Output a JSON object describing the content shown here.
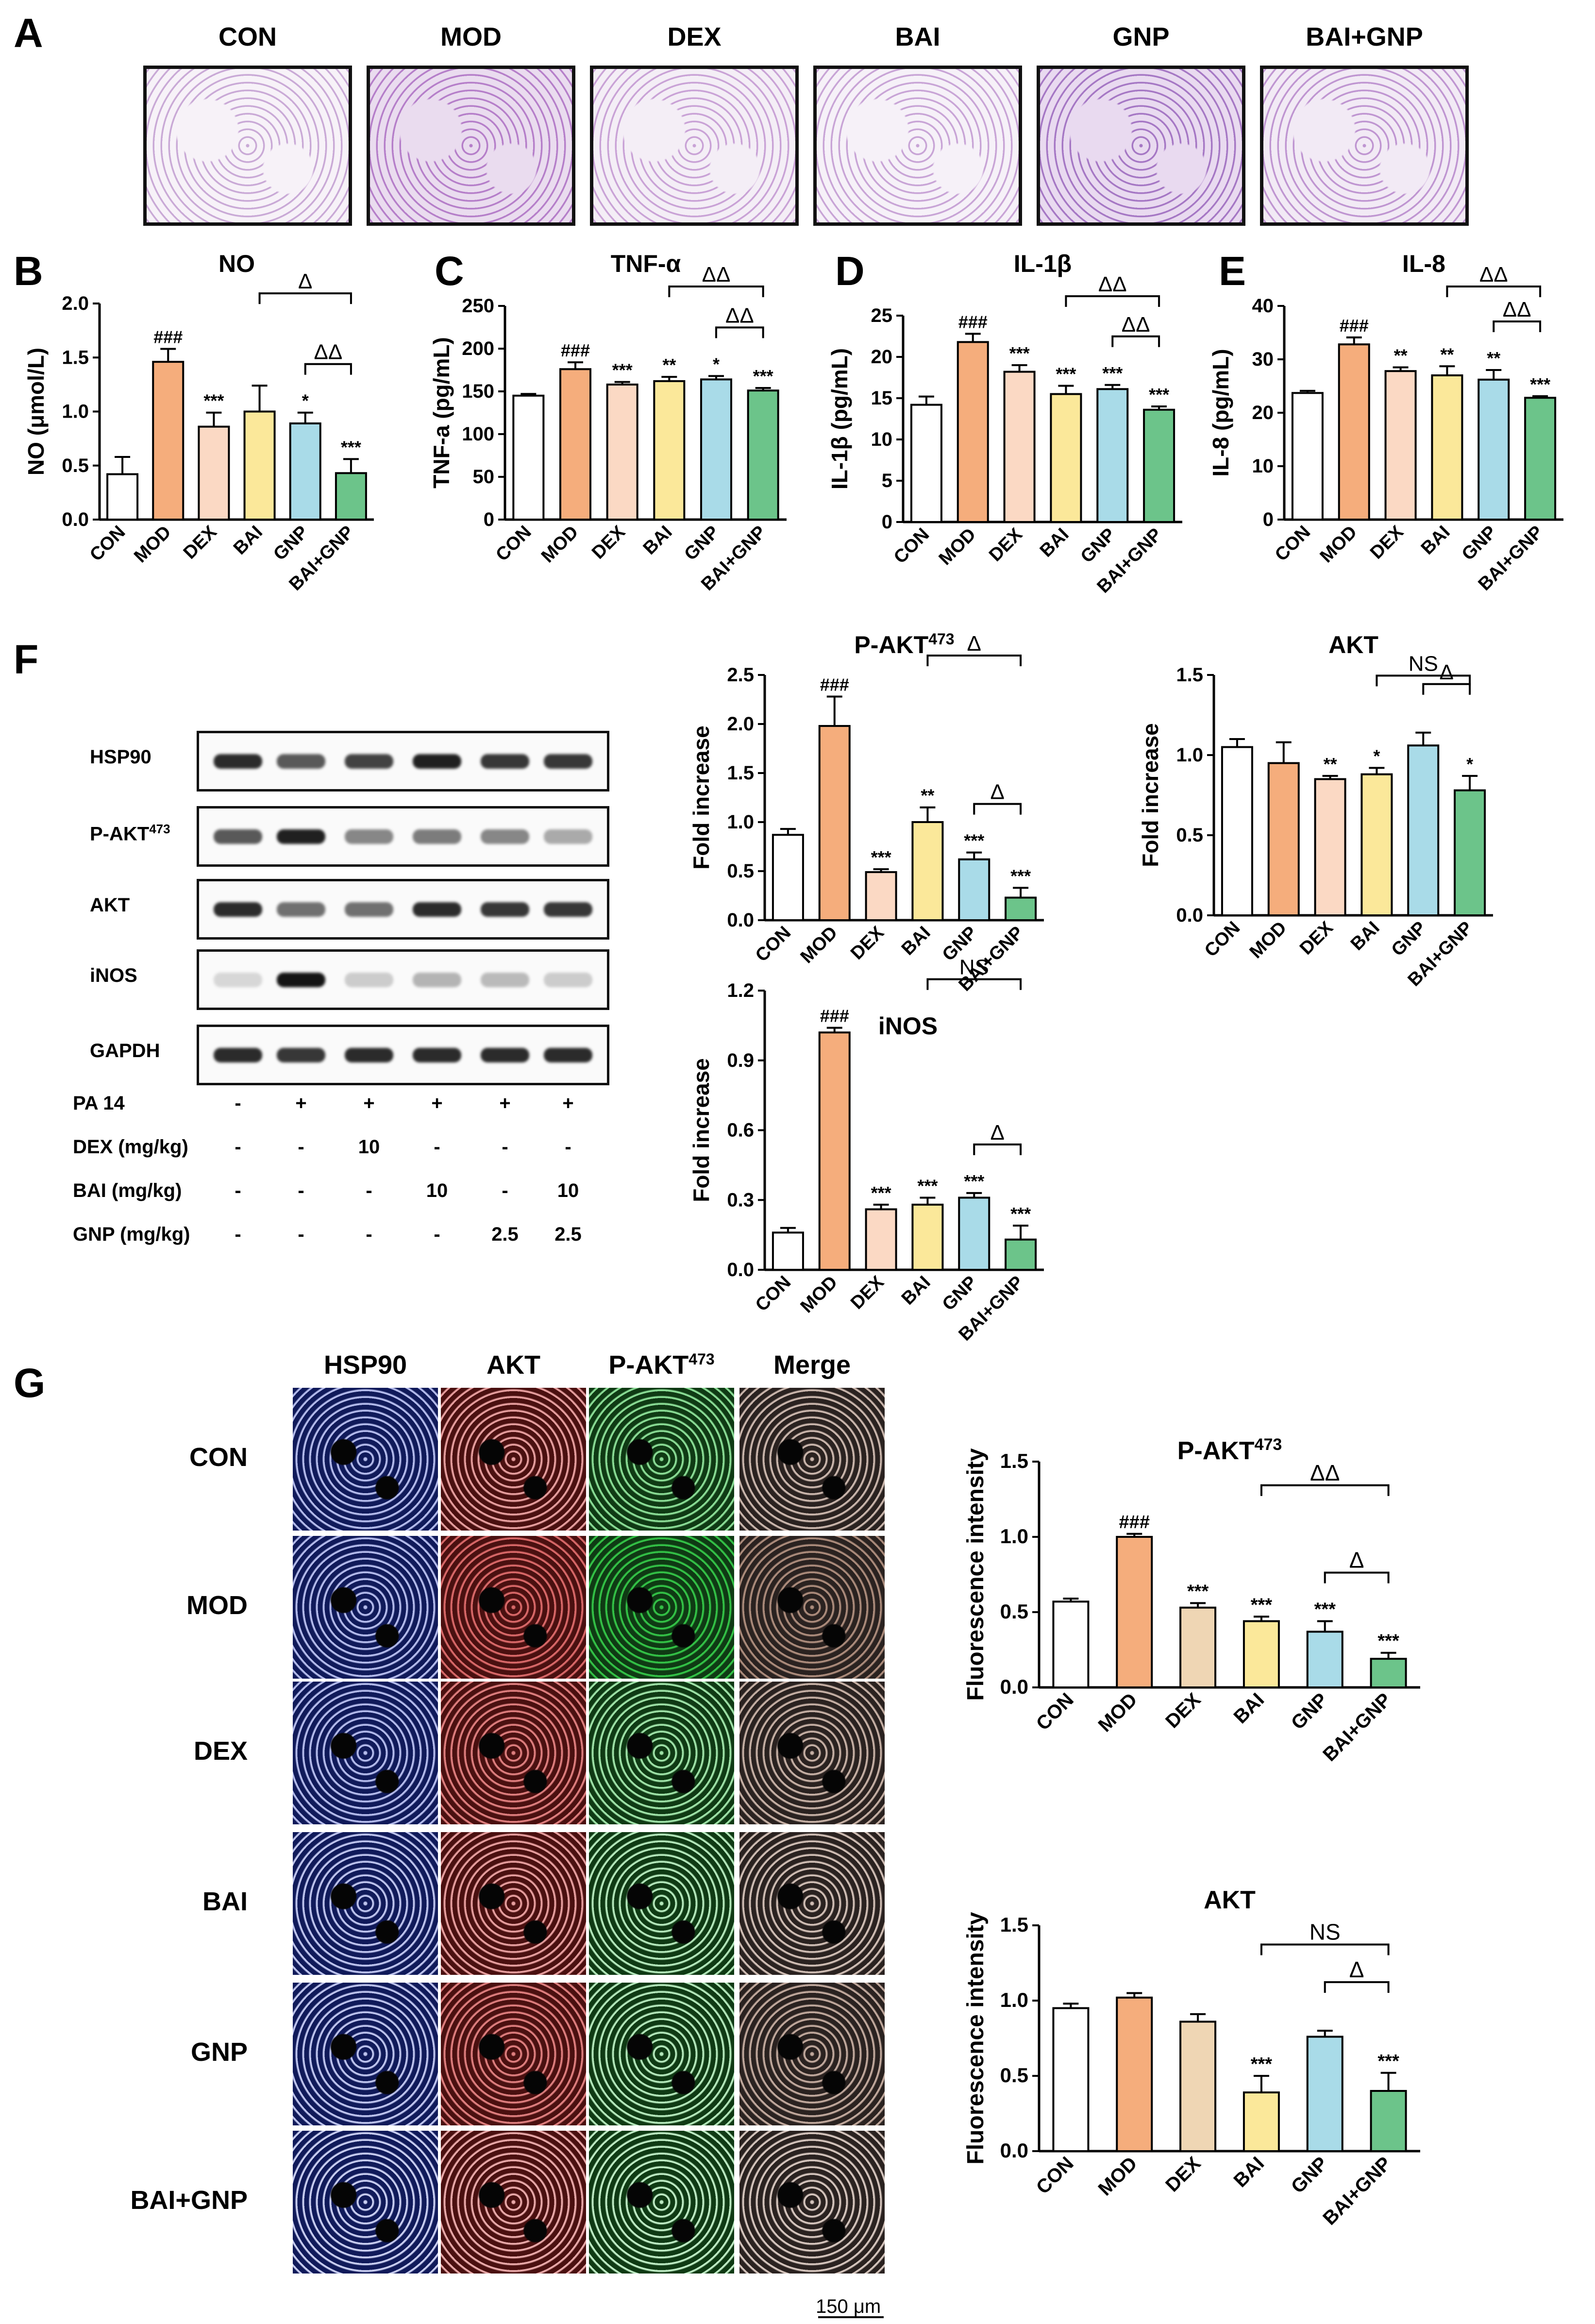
{
  "panel_labels": [
    "A",
    "B",
    "C",
    "D",
    "E",
    "F",
    "G"
  ],
  "panel_a": {
    "groups": [
      "CON",
      "MOD",
      "DEX",
      "BAI",
      "GNP",
      "BAI+GNP"
    ]
  },
  "panel_f": {
    "blot_labels": [
      "HSP90",
      "P-AKT",
      "AKT",
      "iNOS",
      "GAPDH"
    ],
    "blot_superscripts": [
      "",
      "473",
      "",
      "",
      ""
    ],
    "treatments": [
      {
        "label": "PA 14",
        "values": [
          "-",
          "+",
          "+",
          "+",
          "+",
          "+"
        ]
      },
      {
        "label": "DEX (mg/kg)",
        "values": [
          "-",
          "-",
          "10",
          "-",
          "-",
          "-"
        ]
      },
      {
        "label": "BAI (mg/kg)",
        "values": [
          "-",
          "-",
          "-",
          "10",
          "-",
          "10"
        ]
      },
      {
        "label": "GNP (mg/kg)",
        "values": [
          "-",
          "-",
          "-",
          "-",
          "2.5",
          "2.5"
        ]
      }
    ]
  },
  "panel_g": {
    "columns": [
      "HSP90",
      "AKT",
      "P-AKT",
      "Merge"
    ],
    "column_superscripts": [
      "",
      "",
      "473",
      ""
    ],
    "rows": [
      "CON",
      "MOD",
      "DEX",
      "BAI",
      "GNP",
      "BAI+GNP"
    ],
    "scale_bar": "150 μm"
  },
  "colors": {
    "CON": "#ffffff",
    "MOD": "#f5ad7c",
    "DEX": "#fbd9c4",
    "BAI": "#fbe89a",
    "GNP": "#a9dbe8",
    "BAI+GNP": "#6cc48a",
    "DEX_G": "#efd6b4",
    "HSP90_channel": "#101a5a",
    "AKT_channel": "#4a1010",
    "PAKT_channel": "#0f3a14"
  },
  "chart_data": [
    {
      "id": "B",
      "type": "bar",
      "title": "NO",
      "ylabel": "NO (μmol/L)",
      "ylim": [
        0,
        2.0
      ],
      "yticks": [
        "0.0",
        "0.5",
        "1.0",
        "1.5",
        "2.0"
      ],
      "categories": [
        "CON",
        "MOD",
        "DEX",
        "BAI",
        "GNP",
        "BAI+GNP"
      ],
      "values": [
        0.42,
        1.46,
        0.86,
        1.0,
        0.89,
        0.43
      ],
      "errors": [
        0.16,
        0.12,
        0.13,
        0.24,
        0.1,
        0.13
      ],
      "annotations": [
        "",
        "###",
        "***",
        "",
        "*",
        "***"
      ],
      "brackets": [
        {
          "from": "BAI",
          "to": "BAI+GNP",
          "label": "Δ"
        },
        {
          "from": "GNP",
          "to": "BAI+GNP",
          "label": "ΔΔ"
        }
      ]
    },
    {
      "id": "C",
      "type": "bar",
      "title": "TNF-α",
      "ylabel": "TNF-a (pg/mL)",
      "ylim": [
        0,
        250
      ],
      "yticks": [
        "0",
        "50",
        "100",
        "150",
        "200",
        "250"
      ],
      "categories": [
        "CON",
        "MOD",
        "DEX",
        "BAI",
        "GNP",
        "BAI+GNP"
      ],
      "values": [
        145,
        176,
        158,
        162,
        164,
        151
      ],
      "errors": [
        2,
        8,
        3,
        5,
        4,
        3
      ],
      "annotations": [
        "",
        "###",
        "***",
        "**",
        "*",
        "***"
      ],
      "brackets": [
        {
          "from": "BAI",
          "to": "BAI+GNP",
          "label": "ΔΔ"
        },
        {
          "from": "GNP",
          "to": "BAI+GNP",
          "label": "ΔΔ"
        }
      ]
    },
    {
      "id": "D",
      "type": "bar",
      "title": "IL-1β",
      "ylabel": "IL-1β (pg/mL)",
      "ylim": [
        0,
        25
      ],
      "yticks": [
        "0",
        "5",
        "10",
        "15",
        "20",
        "25"
      ],
      "categories": [
        "CON",
        "MOD",
        "DEX",
        "BAI",
        "GNP",
        "BAI+GNP"
      ],
      "values": [
        14.2,
        21.8,
        18.2,
        15.5,
        16.1,
        13.6
      ],
      "errors": [
        1.0,
        1.0,
        0.8,
        1.0,
        0.5,
        0.4
      ],
      "annotations": [
        "",
        "###",
        "***",
        "***",
        "***",
        "***"
      ],
      "brackets": [
        {
          "from": "BAI",
          "to": "BAI+GNP",
          "label": "ΔΔ"
        },
        {
          "from": "GNP",
          "to": "BAI+GNP",
          "label": "ΔΔ"
        }
      ]
    },
    {
      "id": "E",
      "type": "bar",
      "title": "IL-8",
      "ylabel": "IL-8 (pg/mL)",
      "ylim": [
        0,
        40
      ],
      "yticks": [
        "0",
        "10",
        "20",
        "30",
        "40"
      ],
      "categories": [
        "CON",
        "MOD",
        "DEX",
        "BAI",
        "GNP",
        "BAI+GNP"
      ],
      "values": [
        23.7,
        32.8,
        27.8,
        27.0,
        26.2,
        22.8
      ],
      "errors": [
        0.4,
        1.3,
        0.7,
        1.7,
        1.8,
        0.3
      ],
      "annotations": [
        "",
        "###",
        "**",
        "**",
        "**",
        "***"
      ],
      "brackets": [
        {
          "from": "BAI",
          "to": "BAI+GNP",
          "label": "ΔΔ"
        },
        {
          "from": "GNP",
          "to": "BAI+GNP",
          "label": "ΔΔ"
        }
      ]
    },
    {
      "id": "F1",
      "type": "bar",
      "title": "P-AKT",
      "title_sup": "473",
      "ylabel": "Fold increase",
      "ylim": [
        0,
        2.5
      ],
      "yticks": [
        "0.0",
        "0.5",
        "1.0",
        "1.5",
        "2.0",
        "2.5"
      ],
      "categories": [
        "CON",
        "MOD",
        "DEX",
        "BAI",
        "GNP",
        "BAI+GNP"
      ],
      "values": [
        0.87,
        1.98,
        0.49,
        1.0,
        0.62,
        0.23
      ],
      "errors": [
        0.06,
        0.3,
        0.03,
        0.15,
        0.07,
        0.1
      ],
      "annotations": [
        "",
        "###",
        "***",
        "**",
        "***",
        "***"
      ],
      "brackets": [
        {
          "from": "BAI",
          "to": "BAI+GNP",
          "label": "Δ"
        },
        {
          "from": "GNP",
          "to": "BAI+GNP",
          "label": "Δ"
        }
      ]
    },
    {
      "id": "F2",
      "type": "bar",
      "title": "AKT",
      "ylabel": "Fold increase",
      "ylim": [
        0,
        1.5
      ],
      "yticks": [
        "0.0",
        "0.5",
        "1.0",
        "1.5"
      ],
      "categories": [
        "CON",
        "MOD",
        "DEX",
        "BAI",
        "GNP",
        "BAI+GNP"
      ],
      "values": [
        1.05,
        0.95,
        0.85,
        0.88,
        1.06,
        0.78
      ],
      "errors": [
        0.05,
        0.13,
        0.02,
        0.04,
        0.08,
        0.09
      ],
      "annotations": [
        "",
        "",
        "**",
        "*",
        "",
        "*"
      ],
      "brackets": [
        {
          "from": "BAI",
          "to": "BAI+GNP",
          "label": "NS"
        },
        {
          "from": "GNP",
          "to": "BAI+GNP",
          "label": "Δ"
        }
      ]
    },
    {
      "id": "F3",
      "type": "bar",
      "title": "iNOS",
      "ylabel": "Fold increase",
      "ylim": [
        0,
        1.2
      ],
      "yticks": [
        "0.0",
        "0.3",
        "0.6",
        "0.9",
        "1.2"
      ],
      "categories": [
        "CON",
        "MOD",
        "DEX",
        "BAI",
        "GNP",
        "BAI+GNP"
      ],
      "values": [
        0.16,
        1.02,
        0.26,
        0.28,
        0.31,
        0.13
      ],
      "errors": [
        0.02,
        0.02,
        0.02,
        0.03,
        0.02,
        0.06
      ],
      "annotations": [
        "",
        "###",
        "***",
        "***",
        "***",
        "***"
      ],
      "brackets": [
        {
          "from": "BAI",
          "to": "BAI+GNP",
          "label": "NS"
        },
        {
          "from": "GNP",
          "to": "BAI+GNP",
          "label": "Δ"
        }
      ]
    },
    {
      "id": "G1",
      "type": "bar",
      "title": "P-AKT",
      "title_sup": "473",
      "ylabel": "Fluorescence intensity",
      "ylim": [
        0,
        1.5
      ],
      "yticks": [
        "0.0",
        "0.5",
        "1.0",
        "1.5"
      ],
      "categories": [
        "CON",
        "MOD",
        "DEX",
        "BAI",
        "GNP",
        "BAI+GNP"
      ],
      "values": [
        0.57,
        1.0,
        0.53,
        0.44,
        0.37,
        0.19
      ],
      "errors": [
        0.02,
        0.02,
        0.03,
        0.03,
        0.07,
        0.04
      ],
      "annotations": [
        "",
        "###",
        "***",
        "***",
        "***",
        "***"
      ],
      "brackets": [
        {
          "from": "BAI",
          "to": "BAI+GNP",
          "label": "ΔΔ"
        },
        {
          "from": "GNP",
          "to": "BAI+GNP",
          "label": "Δ"
        }
      ]
    },
    {
      "id": "G2",
      "type": "bar",
      "title": "AKT",
      "ylabel": "Fluorescence intensity",
      "ylim": [
        0,
        1.5
      ],
      "yticks": [
        "0.0",
        "0.5",
        "1.0",
        "1.5"
      ],
      "categories": [
        "CON",
        "MOD",
        "DEX",
        "BAI",
        "GNP",
        "BAI+GNP"
      ],
      "values": [
        0.95,
        1.02,
        0.86,
        0.39,
        0.76,
        0.4
      ],
      "errors": [
        0.03,
        0.03,
        0.05,
        0.11,
        0.04,
        0.12
      ],
      "annotations": [
        "",
        "",
        "",
        "***",
        "",
        "***"
      ],
      "brackets": [
        {
          "from": "BAI",
          "to": "BAI+GNP",
          "label": "NS"
        },
        {
          "from": "GNP",
          "to": "BAI+GNP",
          "label": "Δ"
        }
      ]
    }
  ]
}
